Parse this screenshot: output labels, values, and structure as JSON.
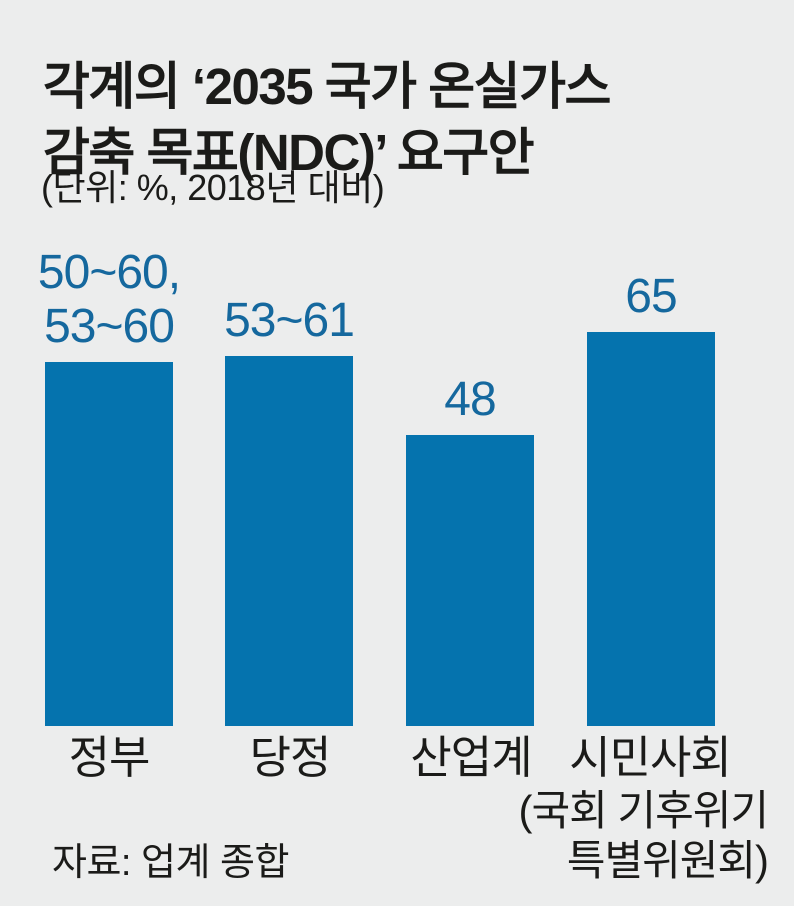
{
  "page": {
    "background_color": "#ECEDED"
  },
  "header": {
    "title_lines": [
      "각계의 ‘2035 국가 온실가스",
      "감축 목표(NDC)’ 요구안"
    ],
    "unit_note": "(단위: %, 2018년 대비)"
  },
  "chart_data": {
    "type": "bar",
    "title": "각계의 ‘2035 국가 온실가스 감축 목표(NDC)’ 요구안",
    "unit": "%, 2018년 대비",
    "categories": [
      "정부",
      "당정",
      "산업계",
      "시민사회"
    ],
    "category_note_lines": [
      "(국회 기후위기",
      "특별위원회)"
    ],
    "category_note_applies_to": "시민사회",
    "values": [
      60,
      61,
      48,
      65
    ],
    "value_label_lines": [
      [
        "50~60,",
        "53~60"
      ],
      [
        "53~61"
      ],
      [
        "48"
      ],
      [
        "65"
      ]
    ],
    "ranges_text": [
      "50~60, 53~60",
      "53~61",
      "48",
      "65"
    ],
    "ylim": [
      0,
      70
    ],
    "grid": false,
    "legend": false,
    "bar_color": "#0573AE",
    "value_label_color": "#15689E",
    "text_color": "#1B1B19"
  },
  "footer": {
    "source": "자료: 업계 종합"
  }
}
